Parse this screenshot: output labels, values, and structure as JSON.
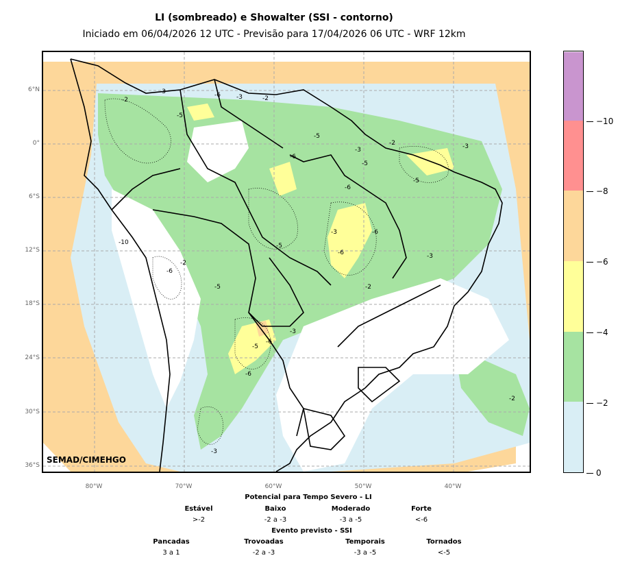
{
  "title": "LI (sombreado) e Showalter (SSI - contorno)",
  "subtitle": "Iniciado em 06/04/2026 12 UTC - Previsão para 17/04/2026 06 UTC - WRF 12km",
  "credit": "SEMAD/CIMEHGO",
  "lat_labels": [
    "6°N",
    "0°",
    "6°S",
    "12°S",
    "18°S",
    "24°S",
    "30°S",
    "36°S"
  ],
  "lon_labels": [
    "80°W",
    "70°W",
    "60°W",
    "50°W",
    "40°W"
  ],
  "colorbar": {
    "colors": [
      "#d9eef5",
      "#a6e3a1",
      "#ffff99",
      "#fdd79a",
      "#ff9090",
      "#c995cf"
    ],
    "tick_labels": [
      "0",
      "−2",
      "−4",
      "−6",
      "−8",
      "−10"
    ]
  },
  "contour_labels": [
    "-2",
    "-3",
    "-5",
    "-6",
    "-3",
    "-2",
    "-5",
    "-6",
    "-3",
    "-5",
    "-6",
    "-2",
    "-3",
    "-5",
    "-6",
    "-3",
    "-2",
    "-5",
    "-6",
    "-3",
    "-10",
    "-6",
    "-5",
    "-3",
    "-2",
    "-6",
    "-5",
    "-3",
    "-2",
    "-6"
  ],
  "legend": {
    "li_title": "Potencial para Tempo Severo - LI",
    "li_categories": [
      "Estável",
      "Baixo",
      "Moderado",
      "Forte"
    ],
    "li_values": [
      ">-2",
      "-2 a -3",
      "-3 a -5",
      "<-6"
    ],
    "ssi_title": "Evento previsto - SSI",
    "ssi_categories": [
      "Pancadas",
      "Trovoadas",
      "Temporais",
      "Tornados"
    ],
    "ssi_values": [
      "3 a 1",
      "-2 a -3",
      "-3 a -5",
      "<-5"
    ]
  }
}
